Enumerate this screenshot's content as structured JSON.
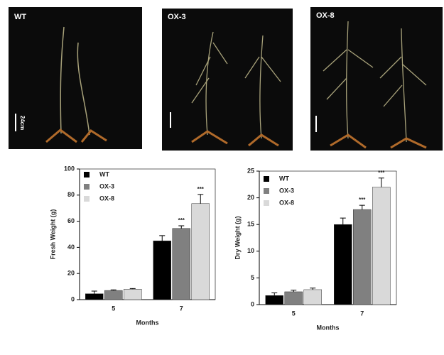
{
  "photos": [
    {
      "label": "WT"
    },
    {
      "label": "OX-3"
    },
    {
      "label": "OX-8"
    }
  ],
  "scale_bar": "24cm",
  "chart_data": [
    {
      "type": "bar",
      "y_label": "Fresh Weight (g)",
      "x_label": "Months",
      "categories": [
        "5",
        "7"
      ],
      "ylim": [
        0,
        100
      ],
      "yticks": [
        0,
        20,
        40,
        60,
        80,
        100
      ],
      "series": [
        {
          "name": "WT",
          "color": "#000000",
          "values": [
            4.5,
            45
          ],
          "errors": [
            2,
            4
          ],
          "annotations": [
            null,
            null
          ]
        },
        {
          "name": "OX-3",
          "color": "#808080",
          "values": [
            7,
            54.5
          ],
          "errors": [
            0.5,
            2
          ],
          "annotations": [
            null,
            "***"
          ]
        },
        {
          "name": "OX-8",
          "color": "#d9d9d9",
          "values": [
            8,
            73.5
          ],
          "errors": [
            0.5,
            7
          ],
          "annotations": [
            null,
            "***"
          ]
        }
      ]
    },
    {
      "type": "bar",
      "y_label": "Dry Weight (g)",
      "x_label": "Months",
      "categories": [
        "5",
        "7"
      ],
      "ylim": [
        0,
        25
      ],
      "yticks": [
        0,
        5,
        10,
        15,
        20,
        25
      ],
      "series": [
        {
          "name": "WT",
          "color": "#000000",
          "values": [
            1.7,
            15
          ],
          "errors": [
            0.5,
            1.2
          ],
          "annotations": [
            null,
            null
          ]
        },
        {
          "name": "OX-3",
          "color": "#808080",
          "values": [
            2.4,
            17.8
          ],
          "errors": [
            0.3,
            0.8
          ],
          "annotations": [
            null,
            "***"
          ]
        },
        {
          "name": "OX-8",
          "color": "#d9d9d9",
          "values": [
            2.8,
            22
          ],
          "errors": [
            0.3,
            1.7
          ],
          "annotations": [
            null,
            "***"
          ]
        }
      ]
    }
  ]
}
